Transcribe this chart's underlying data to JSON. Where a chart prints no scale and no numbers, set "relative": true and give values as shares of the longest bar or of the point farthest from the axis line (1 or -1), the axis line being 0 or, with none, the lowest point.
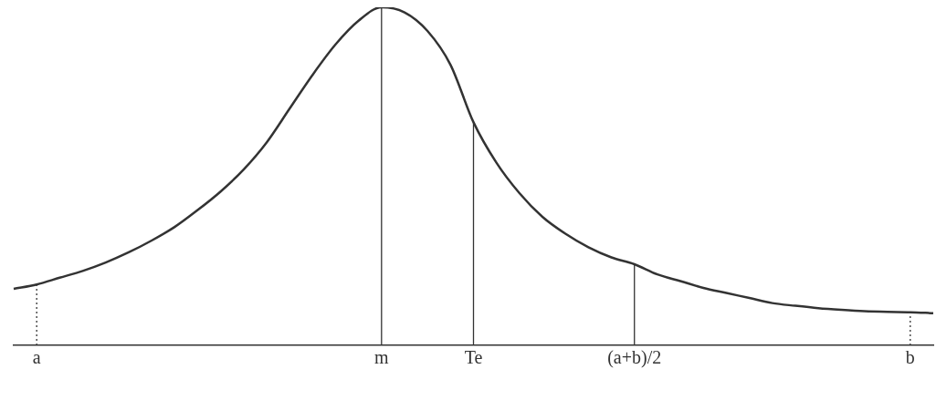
{
  "chart_data": {
    "type": "line",
    "relative": true,
    "marker": "none",
    "grid": false,
    "legend": false,
    "categories": [
      null,
      "a",
      null,
      null,
      null,
      null,
      null,
      null,
      null,
      null,
      null,
      null,
      null,
      null,
      null,
      null,
      "m",
      null,
      null,
      null,
      "Te",
      null,
      null,
      null,
      null,
      null,
      null,
      "(a+b)/2",
      null,
      null,
      null,
      null,
      null,
      null,
      null,
      null,
      null,
      null,
      null,
      "b",
      null
    ],
    "series": [
      {
        "color": "#333333",
        "values": [
          0.167,
          0.18,
          0.2,
          0.22,
          0.245,
          0.275,
          0.31,
          0.35,
          0.4,
          0.455,
          0.52,
          0.6,
          0.7,
          0.8,
          0.89,
          0.96,
          1,
          0.985,
          0.93,
          0.83,
          0.66,
          0.54,
          0.45,
          0.38,
          0.33,
          0.29,
          0.26,
          0.24,
          0.21,
          0.19,
          0.17,
          0.155,
          0.14,
          0.125,
          0.117,
          0.11,
          0.105,
          0.101,
          0.099,
          0.098,
          0.095
        ]
      }
    ],
    "ref_lines": [
      {
        "axis": "x",
        "value": "a",
        "line_style": "dotted"
      },
      {
        "axis": "x",
        "value": "m",
        "line_style": "solid"
      },
      {
        "axis": "x",
        "value": "Te",
        "line_style": "solid"
      },
      {
        "axis": "x",
        "value": "(a+b)/2",
        "line_style": "solid"
      },
      {
        "axis": "x",
        "value": "b",
        "line_style": "dotted"
      }
    ]
  }
}
